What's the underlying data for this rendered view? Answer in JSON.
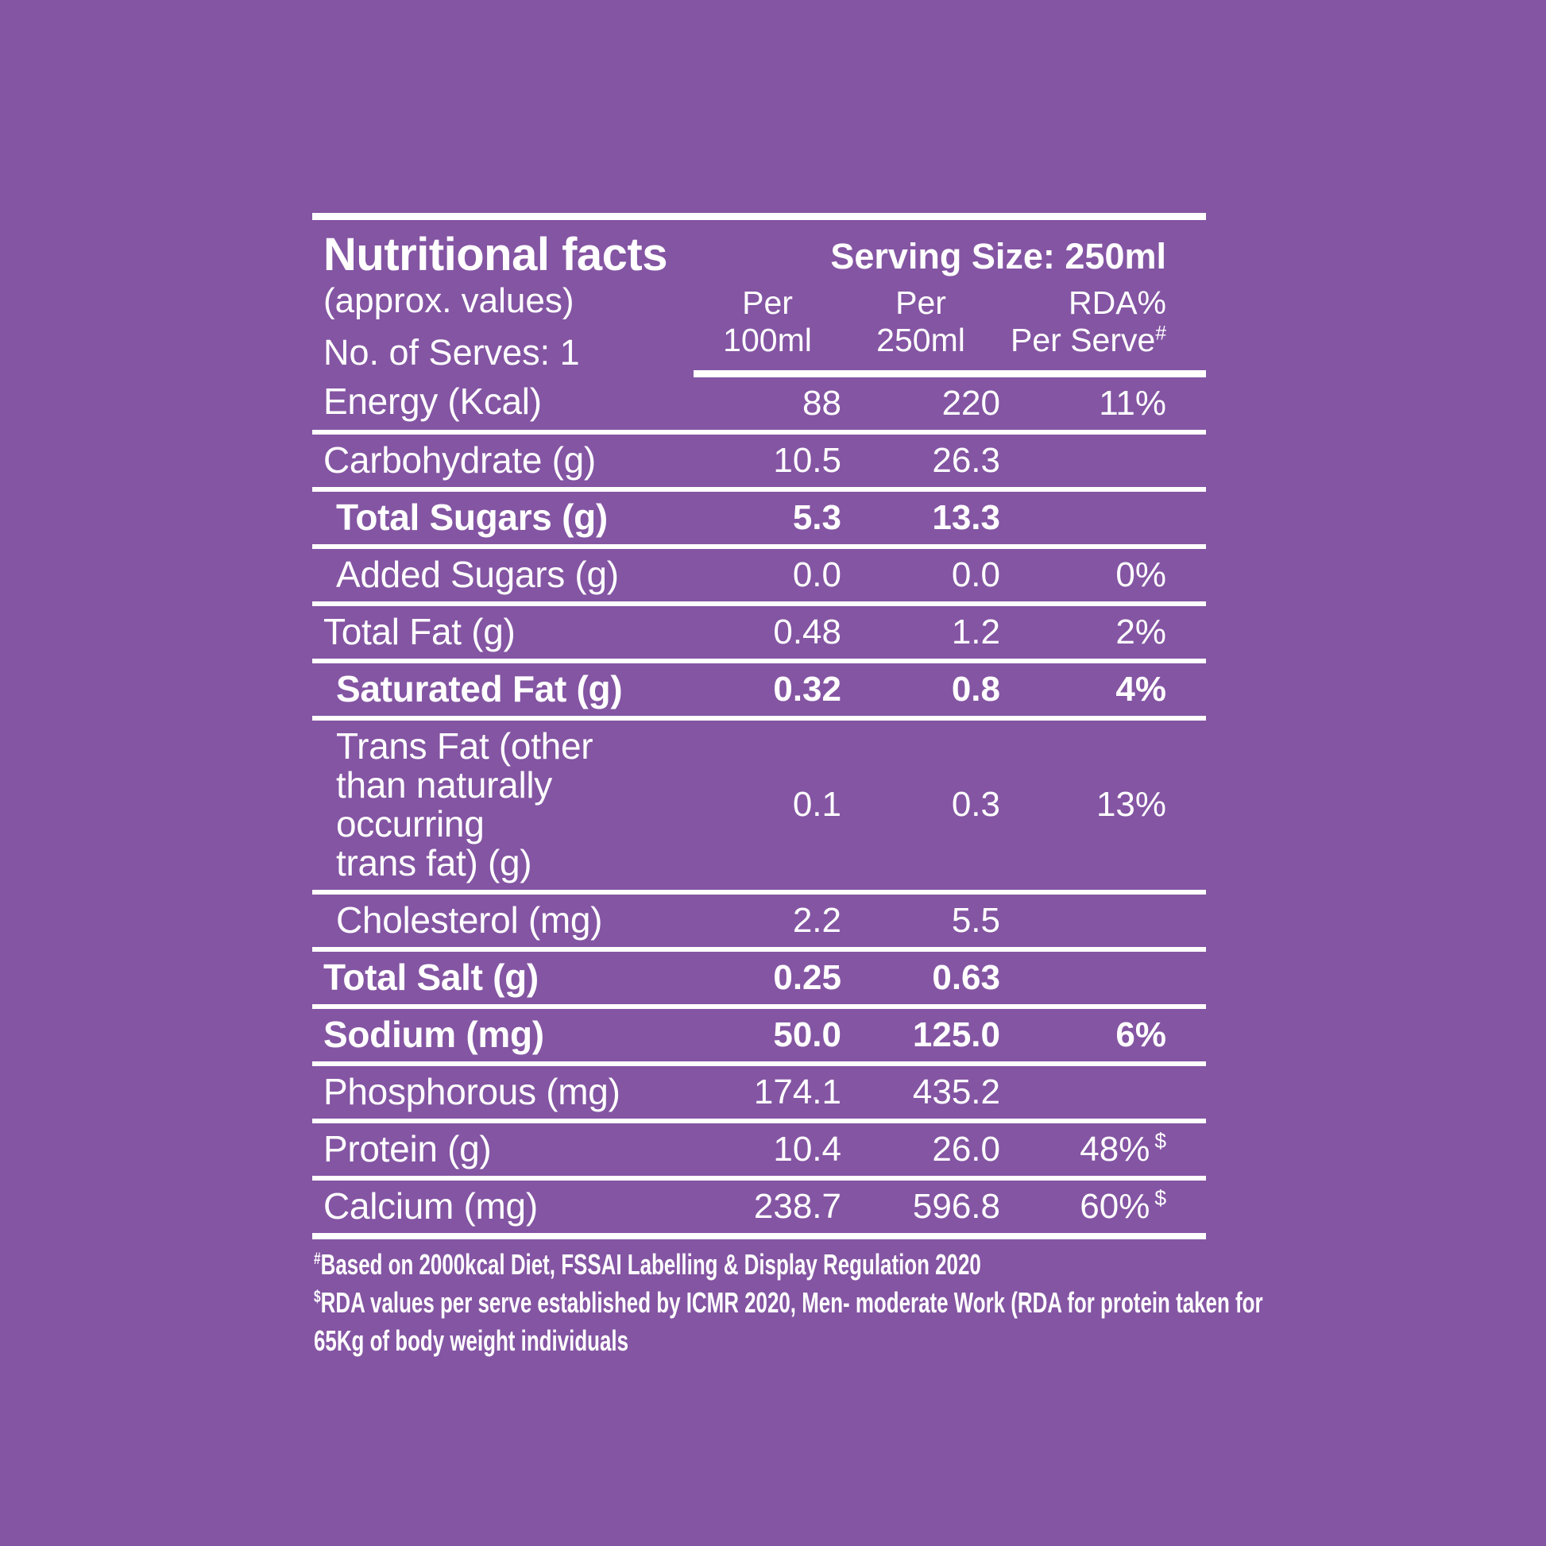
{
  "theme": {
    "background_color": "#8455A3",
    "text_color": "#FFFFFF",
    "rule_color": "#FFFFFF"
  },
  "header": {
    "title": "Nutritional facts",
    "subtitle": "(approx. values)",
    "serves": "No. of Serves: 1",
    "serving_size": "Serving Size: 250ml",
    "columns": [
      {
        "line1": "Per",
        "line2": "100ml",
        "sup": ""
      },
      {
        "line1": "Per",
        "line2": "250ml",
        "sup": ""
      },
      {
        "line1": "RDA%",
        "line2": "Per Serve",
        "sup": "#"
      }
    ]
  },
  "rows": [
    {
      "label": "Energy (Kcal)",
      "per100": "88",
      "per250": "220",
      "rda": "11%"
    },
    {
      "label": "Carbohydrate (g)",
      "per100": "10.5",
      "per250": "26.3",
      "rda": ""
    },
    {
      "label": "Total Sugars (g)",
      "per100": "5.3",
      "per250": "13.3",
      "rda": ""
    },
    {
      "label": "Added Sugars (g)",
      "per100": "0.0",
      "per250": "0.0",
      "rda": "0%"
    },
    {
      "label": "Total Fat (g)",
      "per100": "0.48",
      "per250": "1.2",
      "rda": "2%"
    },
    {
      "label": "Saturated Fat (g)",
      "per100": "0.32",
      "per250": "0.8",
      "rda": "4%"
    },
    {
      "label": "Trans Fat (other\nthan naturally\noccurring\ntrans fat) (g)",
      "per100": "0.1",
      "per250": "0.3",
      "rda": "13%"
    },
    {
      "label": "Cholesterol (mg)",
      "per100": "2.2",
      "per250": "5.5",
      "rda": ""
    },
    {
      "label": "Total Salt (g)",
      "per100": "0.25",
      "per250": "0.63",
      "rda": ""
    },
    {
      "label": "Sodium (mg)",
      "per100": "50.0",
      "per250": "125.0",
      "rda": "6%"
    },
    {
      "label": "Phosphorous (mg)",
      "per100": "174.1",
      "per250": "435.2",
      "rda": ""
    },
    {
      "label": "Protein (g)",
      "per100": "10.4",
      "per250": "26.0",
      "rda": "48%",
      "rda_sup": "$"
    },
    {
      "label": "Calcium (mg)",
      "per100": "238.7",
      "per250": "596.8",
      "rda": "60%",
      "rda_sup": "$"
    }
  ],
  "footnotes": [
    {
      "sup": "#",
      "text": "Based on 2000kcal Diet, FSSAI Labelling & Display Regulation 2020"
    },
    {
      "sup": "$",
      "text": "RDA values per serve established by ICMR 2020, Men- moderate Work (RDA for protein taken for"
    },
    {
      "sup": "",
      "text": "65Kg of body weight individuals"
    }
  ]
}
